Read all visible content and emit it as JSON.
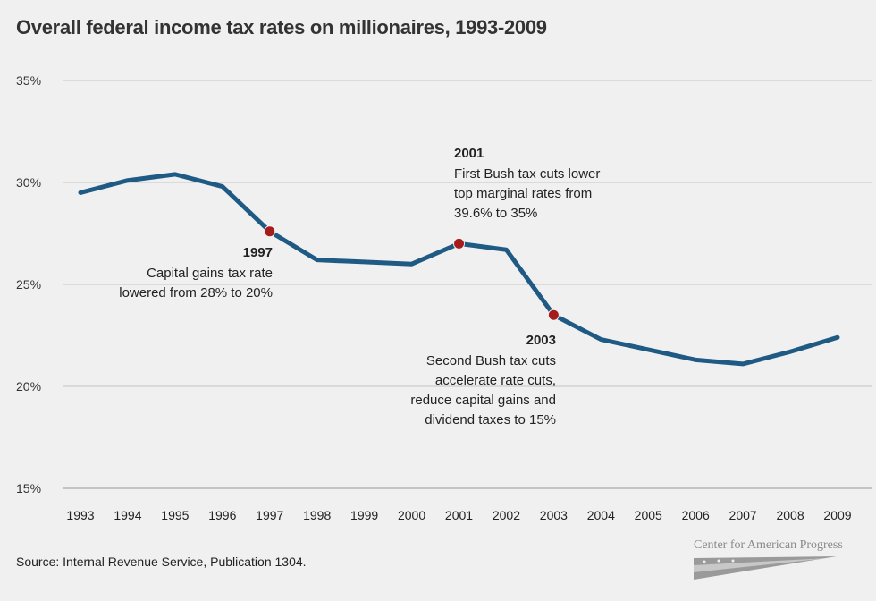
{
  "chart_data": {
    "type": "line",
    "title": "Overall federal income tax rates on millionaires, 1993-2009",
    "x": [
      1993,
      1994,
      1995,
      1996,
      1997,
      1998,
      1999,
      2000,
      2001,
      2002,
      2003,
      2004,
      2005,
      2006,
      2007,
      2008,
      2009
    ],
    "series": [
      {
        "values": [
          29.5,
          30.1,
          30.4,
          29.8,
          27.6,
          26.2,
          26.1,
          26.0,
          27.0,
          26.7,
          23.5,
          22.3,
          21.8,
          21.3,
          21.1,
          21.7,
          22.4
        ]
      }
    ],
    "ylim": [
      15,
      35
    ],
    "yticks": [
      15,
      20,
      25,
      30,
      35
    ],
    "ytick_labels": [
      "15%",
      "20%",
      "25%",
      "30%",
      "35%"
    ],
    "grid": true,
    "line_color": "#1f5a84",
    "marker_color": "#a51c1c",
    "annotations": [
      {
        "x": 1997,
        "year": "1997",
        "lines": [
          "Capital gains tax rate",
          "lowered from 28% to 20%"
        ],
        "align": "right"
      },
      {
        "x": 2001,
        "year": "2001",
        "lines": [
          "First Bush tax cuts lower",
          "top marginal rates from",
          "39.6% to 35%"
        ],
        "align": "left"
      },
      {
        "x": 2003,
        "year": "2003",
        "lines": [
          "Second Bush tax cuts",
          "accelerate rate cuts,",
          "reduce capital gains and",
          "dividend taxes to 15%"
        ],
        "align": "right"
      }
    ]
  },
  "source": "Source: Internal Revenue Service, Publication 1304.",
  "logo": {
    "text": "Center for American Progress"
  }
}
